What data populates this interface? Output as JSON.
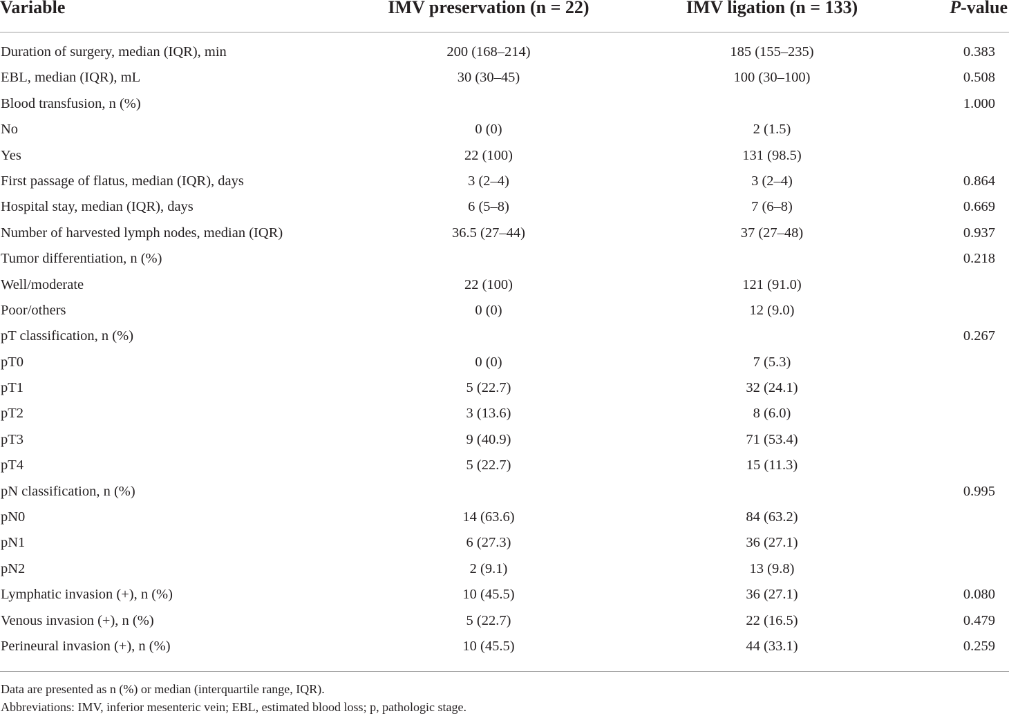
{
  "table": {
    "headers": {
      "variable": "Variable",
      "preservation": "IMV preservation (n = 22)",
      "ligation": "IMV ligation (n = 133)",
      "p_italic": "P",
      "p_suffix": "-value"
    },
    "rows": [
      [
        "Duration of surgery, median (IQR), min",
        "200 (168–214)",
        "185 (155–235)",
        "0.383"
      ],
      [
        "EBL, median (IQR), mL",
        "30 (30–45)",
        "100 (30–100)",
        "0.508"
      ],
      [
        "Blood transfusion, n (%)",
        "",
        "",
        "1.000"
      ],
      [
        "No",
        "0 (0)",
        "2 (1.5)",
        ""
      ],
      [
        "Yes",
        "22 (100)",
        "131 (98.5)",
        ""
      ],
      [
        "First passage of flatus, median (IQR), days",
        "3 (2–4)",
        "3 (2–4)",
        "0.864"
      ],
      [
        "Hospital stay, median (IQR), days",
        "6 (5–8)",
        "7 (6–8)",
        "0.669"
      ],
      [
        "Number of harvested lymph nodes, median (IQR)",
        "36.5 (27–44)",
        "37 (27–48)",
        "0.937"
      ],
      [
        "Tumor differentiation, n (%)",
        "",
        "",
        "0.218"
      ],
      [
        "Well/moderate",
        "22 (100)",
        "121 (91.0)",
        ""
      ],
      [
        "Poor/others",
        "0 (0)",
        "12 (9.0)",
        ""
      ],
      [
        "pT classification, n (%)",
        "",
        "",
        "0.267"
      ],
      [
        "pT0",
        "0 (0)",
        "7 (5.3)",
        ""
      ],
      [
        "pT1",
        "5 (22.7)",
        "32 (24.1)",
        ""
      ],
      [
        "pT2",
        "3 (13.6)",
        "8 (6.0)",
        ""
      ],
      [
        "pT3",
        "9 (40.9)",
        "71 (53.4)",
        ""
      ],
      [
        "pT4",
        "5 (22.7)",
        "15 (11.3)",
        ""
      ],
      [
        "pN classification, n (%)",
        "",
        "",
        "0.995"
      ],
      [
        "pN0",
        "14 (63.6)",
        "84 (63.2)",
        ""
      ],
      [
        "pN1",
        "6 (27.3)",
        "36 (27.1)",
        ""
      ],
      [
        "pN2",
        "2 (9.1)",
        "13 (9.8)",
        ""
      ],
      [
        "Lymphatic invasion (+), n (%)",
        "10 (45.5)",
        "36 (27.1)",
        "0.080"
      ],
      [
        "Venous invasion (+), n (%)",
        "5 (22.7)",
        "22 (16.5)",
        "0.479"
      ],
      [
        "Perineural invasion (+), n (%)",
        "10 (45.5)",
        "44 (33.1)",
        "0.259"
      ]
    ]
  },
  "footnotes": [
    "Data are presented as n (%) or median (interquartile range, IQR).",
    "Abbreviations: IMV, inferior mesenteric vein; EBL, estimated blood loss; p, pathologic stage."
  ]
}
